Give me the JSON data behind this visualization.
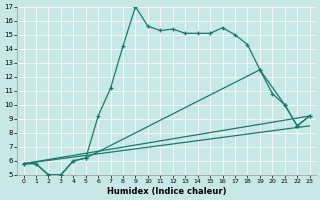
{
  "xlabel": "Humidex (Indice chaleur)",
  "bg_color": "#c8e8e8",
  "line_color": "#1a7a6a",
  "xlim": [
    -0.5,
    23.5
  ],
  "ylim": [
    5,
    17
  ],
  "xticks": [
    0,
    1,
    2,
    3,
    4,
    5,
    6,
    7,
    8,
    9,
    10,
    11,
    12,
    13,
    14,
    15,
    16,
    17,
    18,
    19,
    20,
    21,
    22,
    23
  ],
  "yticks": [
    5,
    6,
    7,
    8,
    9,
    10,
    11,
    12,
    13,
    14,
    15,
    16,
    17
  ],
  "line1_x": [
    0,
    1,
    2,
    3,
    4,
    5,
    6,
    7,
    8,
    9,
    10,
    11,
    12,
    13,
    14,
    15,
    16,
    17,
    18,
    19,
    20,
    21,
    22,
    23
  ],
  "line1_y": [
    5.8,
    5.8,
    5.0,
    5.0,
    6.0,
    6.2,
    9.2,
    11.2,
    14.2,
    17.0,
    15.6,
    15.3,
    15.4,
    15.1,
    15.1,
    15.1,
    15.5,
    15.0,
    14.3,
    12.5,
    10.8,
    10.0,
    8.5,
    9.2
  ],
  "line2_x": [
    0,
    1,
    2,
    3,
    4,
    5,
    19,
    21,
    22,
    23
  ],
  "line2_y": [
    5.8,
    5.8,
    5.0,
    5.0,
    6.0,
    6.2,
    12.5,
    10.0,
    8.5,
    9.2
  ],
  "line3_x": [
    0,
    23
  ],
  "line3_y": [
    5.8,
    9.2
  ],
  "line4_x": [
    0,
    23
  ],
  "line4_y": [
    5.8,
    8.5
  ]
}
